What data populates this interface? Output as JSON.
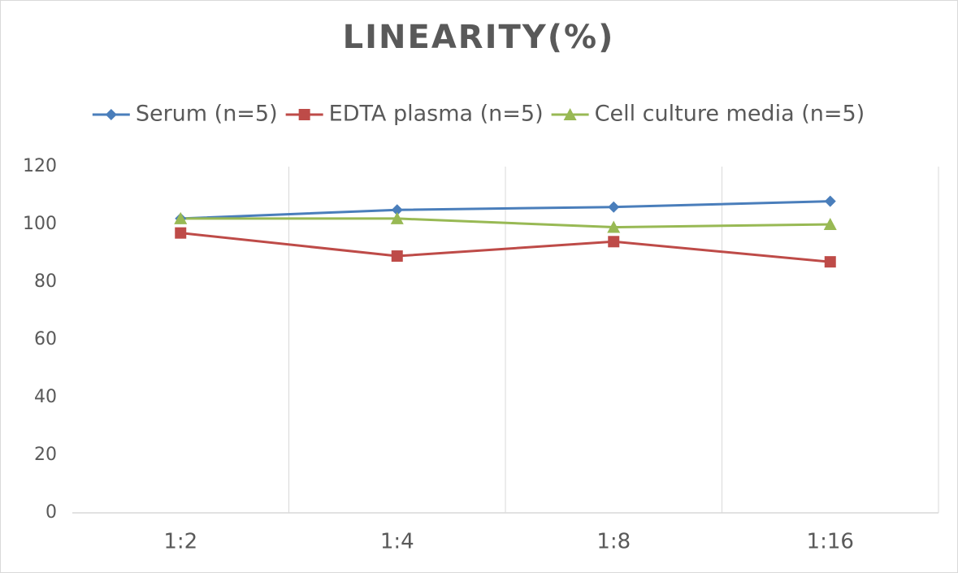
{
  "chart_data": {
    "type": "line",
    "title": "LINEARITY(%)",
    "categories": [
      "1:2",
      "1:4",
      "1:8",
      "1:16"
    ],
    "series": [
      {
        "name": "Serum (n=5)",
        "color": "#4a7ebb",
        "marker": "diamond",
        "values": [
          102,
          105,
          106,
          108
        ]
      },
      {
        "name": "EDTA plasma (n=5)",
        "color": "#be4b48",
        "marker": "square",
        "values": [
          97,
          89,
          94,
          87
        ]
      },
      {
        "name": "Cell culture media (n=5)",
        "color": "#98b954",
        "marker": "triangle",
        "values": [
          102,
          102,
          99,
          100
        ]
      }
    ],
    "ylim": [
      0,
      120
    ],
    "yticks": [
      0,
      20,
      40,
      60,
      80,
      100,
      120
    ],
    "grid": "x",
    "legend": "top"
  }
}
